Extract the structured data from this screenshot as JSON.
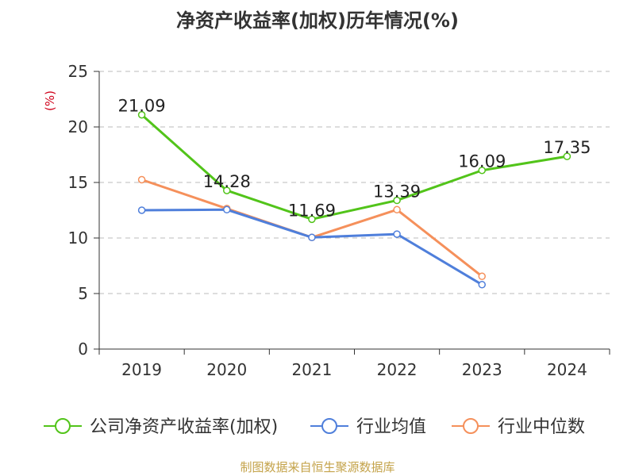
{
  "chart_data": {
    "type": "line",
    "title": "净资产收益率(加权)历年情况(%)",
    "ylabel": "(%)",
    "xlabel": "",
    "categories": [
      "2019",
      "2020",
      "2021",
      "2022",
      "2023",
      "2024"
    ],
    "ylim": [
      0,
      25
    ],
    "yticks": [
      0,
      5,
      10,
      15,
      20,
      25
    ],
    "grid": true,
    "legend_position": "bottom",
    "series": [
      {
        "name": "公司净资产收益率(加权)",
        "color": "#52c41a",
        "values": [
          21.09,
          14.28,
          11.69,
          13.39,
          16.09,
          17.35
        ],
        "labels": [
          "21.09",
          "14.28",
          "11.69",
          "13.39",
          "16.09",
          "17.35"
        ]
      },
      {
        "name": "行业均值",
        "color": "#4f7fdb",
        "values": [
          12.5,
          12.55,
          10.05,
          10.35,
          5.8,
          null
        ]
      },
      {
        "name": "行业中位数",
        "color": "#f5905b",
        "values": [
          15.25,
          12.65,
          10.05,
          12.55,
          6.55,
          null
        ]
      }
    ]
  },
  "source": "制图数据来自恒生聚源数据库"
}
